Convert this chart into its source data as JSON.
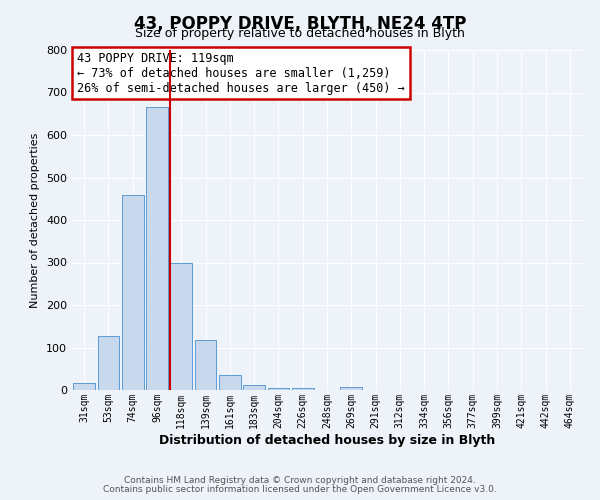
{
  "title": "43, POPPY DRIVE, BLYTH, NE24 4TP",
  "subtitle": "Size of property relative to detached houses in Blyth",
  "xlabel": "Distribution of detached houses by size in Blyth",
  "ylabel": "Number of detached properties",
  "bar_color": "#c9d9ed",
  "bar_edge_color": "#5b9bd5",
  "categories": [
    "31sqm",
    "53sqm",
    "74sqm",
    "96sqm",
    "118sqm",
    "139sqm",
    "161sqm",
    "183sqm",
    "204sqm",
    "226sqm",
    "248sqm",
    "269sqm",
    "291sqm",
    "312sqm",
    "334sqm",
    "356sqm",
    "377sqm",
    "399sqm",
    "421sqm",
    "442sqm",
    "464sqm"
  ],
  "values": [
    17,
    127,
    458,
    665,
    300,
    117,
    35,
    12,
    5,
    5,
    0,
    8,
    0,
    0,
    0,
    0,
    0,
    0,
    0,
    0,
    0
  ],
  "property_line_index": 4,
  "property_line_color": "#cc0000",
  "ylim": [
    0,
    800
  ],
  "yticks": [
    0,
    100,
    200,
    300,
    400,
    500,
    600,
    700,
    800
  ],
  "annotation_text": "43 POPPY DRIVE: 119sqm\n← 73% of detached houses are smaller (1,259)\n26% of semi-detached houses are larger (450) →",
  "annotation_box_color": "#ffffff",
  "annotation_box_edge_color": "#cc0000",
  "footer1": "Contains HM Land Registry data © Crown copyright and database right 2024.",
  "footer2": "Contains public sector information licensed under the Open Government Licence v3.0.",
  "background_color": "#eef2f9",
  "grid_color": "#ffffff",
  "title_fontsize": 12,
  "subtitle_fontsize": 9,
  "ylabel_fontsize": 8,
  "xlabel_fontsize": 9,
  "tick_fontsize": 7,
  "annotation_fontsize": 8.5,
  "footer_fontsize": 6.5
}
